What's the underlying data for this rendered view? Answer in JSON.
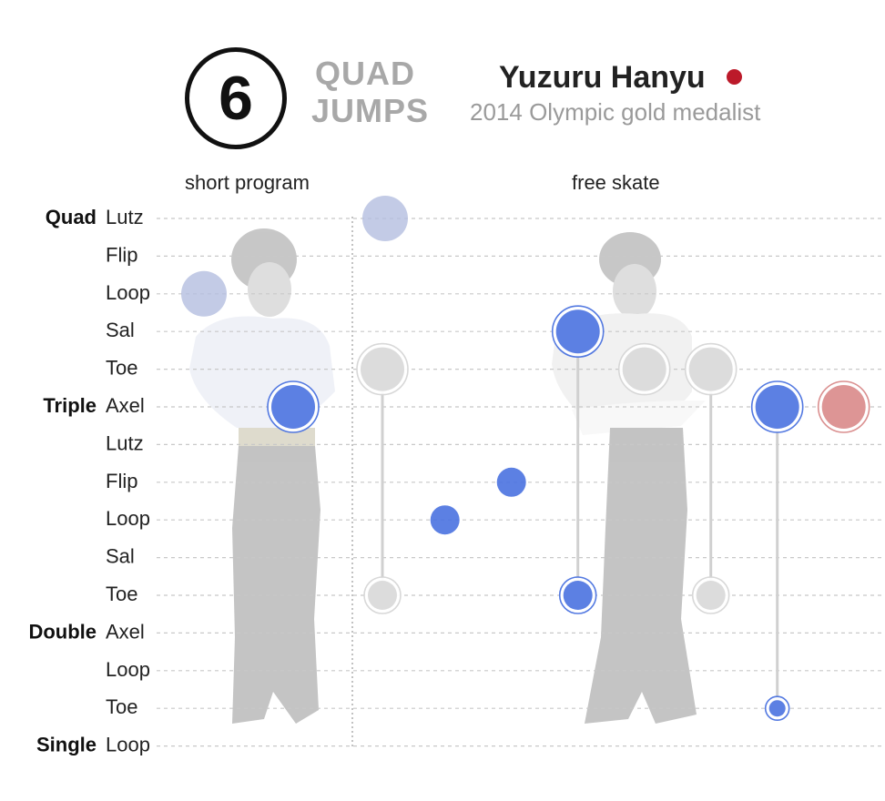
{
  "header": {
    "count": "6",
    "label_line1": "QUAD",
    "label_line2": "JUMPS",
    "skater_name": "Yuzuru Hanyu",
    "subtitle": "2014 Olympic gold medalist",
    "flag_color": "#bc1a2a"
  },
  "programs": {
    "short": "short program",
    "free": "free skate"
  },
  "colors": {
    "blue": "#4a72e0",
    "light_blue": "#b4bee0",
    "gray": "#d6d6d6",
    "red": "#d98a8a",
    "grid": "#c8c8c8",
    "photo_fill": "#9a9a9a"
  },
  "chart_data": {
    "type": "scatter",
    "groups": [
      {
        "name": "Quad",
        "jumps": [
          "Lutz",
          "Flip",
          "Loop",
          "Sal",
          "Toe"
        ]
      },
      {
        "name": "Triple",
        "jumps": [
          "Axel",
          "Lutz",
          "Flip",
          "Loop",
          "Sal",
          "Toe"
        ]
      },
      {
        "name": "Double",
        "jumps": [
          "Axel",
          "Loop",
          "Toe"
        ]
      },
      {
        "name": "Single",
        "jumps": [
          "Loop"
        ]
      }
    ],
    "rows": [
      {
        "group": "Quad",
        "jump": "Lutz"
      },
      {
        "group": "",
        "jump": "Flip"
      },
      {
        "group": "",
        "jump": "Loop"
      },
      {
        "group": "",
        "jump": "Sal"
      },
      {
        "group": "",
        "jump": "Toe"
      },
      {
        "group": "Triple",
        "jump": "Axel"
      },
      {
        "group": "",
        "jump": "Lutz"
      },
      {
        "group": "",
        "jump": "Flip"
      },
      {
        "group": "",
        "jump": "Loop"
      },
      {
        "group": "",
        "jump": "Sal"
      },
      {
        "group": "",
        "jump": "Toe"
      },
      {
        "group": "Double",
        "jump": "Axel"
      },
      {
        "group": "",
        "jump": "Loop"
      },
      {
        "group": "",
        "jump": "Toe"
      },
      {
        "group": "Single",
        "jump": "Loop"
      }
    ],
    "jumps": [
      {
        "program": "short",
        "order": 0.3,
        "row": 2,
        "color": "light_blue",
        "size": "large",
        "ring": false
      },
      {
        "program": "short",
        "order": 1.0,
        "row": 5,
        "color": "blue",
        "size": "large",
        "ring": true
      },
      {
        "program": "short",
        "order": 1.7,
        "row": 4,
        "color": "gray",
        "size": "large",
        "ring": true
      },
      {
        "program": "short",
        "order": 1.7,
        "row": 10,
        "color": "gray",
        "size": "medium",
        "ring": true
      },
      {
        "program": "free",
        "order": 0.1,
        "row": 0,
        "color": "light_blue",
        "size": "large",
        "ring": false
      },
      {
        "program": "free",
        "order": 1.0,
        "row": 8,
        "color": "blue",
        "size": "small",
        "ring": false
      },
      {
        "program": "free",
        "order": 2.0,
        "row": 7,
        "color": "blue",
        "size": "small",
        "ring": false
      },
      {
        "program": "free",
        "order": 3.0,
        "row": 3,
        "color": "blue",
        "size": "large",
        "ring": true
      },
      {
        "program": "free",
        "order": 3.0,
        "row": 10,
        "color": "blue",
        "size": "medium",
        "ring": true
      },
      {
        "program": "free",
        "order": 4.0,
        "row": 4,
        "color": "gray",
        "size": "large",
        "ring": true
      },
      {
        "program": "free",
        "order": 5.0,
        "row": 4,
        "color": "gray",
        "size": "large",
        "ring": true
      },
      {
        "program": "free",
        "order": 5.0,
        "row": 10,
        "color": "gray",
        "size": "medium",
        "ring": true
      },
      {
        "program": "free",
        "order": 6.0,
        "row": 5,
        "color": "blue",
        "size": "large",
        "ring": true
      },
      {
        "program": "free",
        "order": 6.0,
        "row": 13,
        "color": "blue",
        "size": "tiny",
        "ring": true
      },
      {
        "program": "free",
        "order": 7.0,
        "row": 5,
        "color": "red",
        "size": "large",
        "ring": true
      }
    ],
    "combos": [
      {
        "program": "short",
        "order": 1.7,
        "from_row": 4,
        "to_row": 10
      },
      {
        "program": "free",
        "order": 3.0,
        "from_row": 3,
        "to_row": 10
      },
      {
        "program": "free",
        "order": 5.0,
        "from_row": 4,
        "to_row": 10
      },
      {
        "program": "free",
        "order": 6.0,
        "from_row": 5,
        "to_row": 13
      }
    ],
    "grid": true
  }
}
